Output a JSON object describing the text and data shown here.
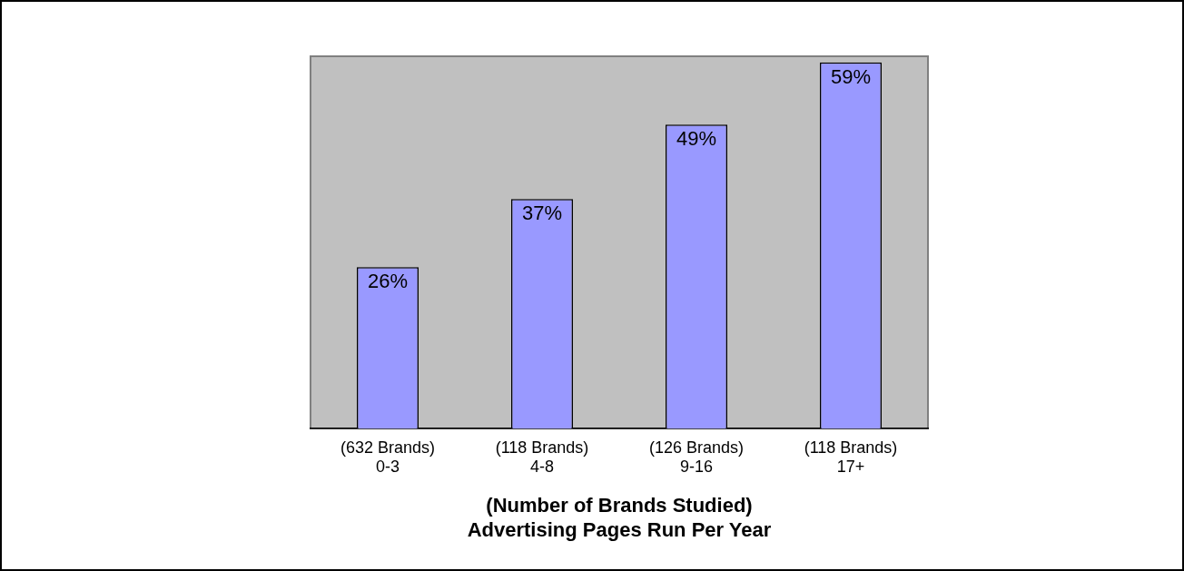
{
  "chart_data": {
    "type": "bar",
    "categories": [
      "(632 Brands)\n0-3",
      "(118 Brands)\n4-8",
      "(126 Brands)\n9-16",
      "(118 Brands)\n17+"
    ],
    "values": [
      26,
      37,
      49,
      59
    ],
    "value_labels": [
      "26%",
      "37%",
      "49%",
      "59%"
    ],
    "color": "#9999ff",
    "xlabel": "(Number of Brands Studied)\nAdvertising Pages Run Per Year",
    "legend": false,
    "grid": false
  }
}
